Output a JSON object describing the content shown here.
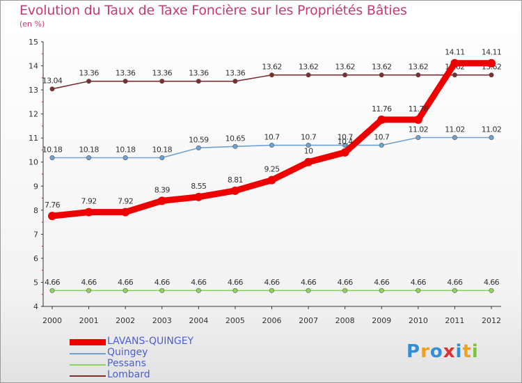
{
  "chart_data": {
    "type": "line",
    "title": "Evolution du Taux de Taxe Foncière sur les Propriétés Bâties",
    "ylabel": "(en %)",
    "xlabel": "",
    "categories": [
      "2000",
      "2001",
      "2002",
      "2003",
      "2004",
      "2005",
      "2006",
      "2007",
      "2008",
      "2009",
      "2010",
      "2011",
      "2012"
    ],
    "ylim": [
      4,
      15
    ],
    "yticks": [
      "4",
      "5",
      "6",
      "7",
      "8",
      "9",
      "10",
      "11",
      "12",
      "13",
      "14",
      "15"
    ],
    "grid": false,
    "legend": "bottom-left",
    "series": [
      {
        "name": "Lombard",
        "color": "#7a2e2e",
        "values": [
          13.04,
          13.36,
          13.36,
          13.36,
          13.36,
          13.36,
          13.62,
          13.62,
          13.62,
          13.62,
          13.62,
          13.62,
          13.62
        ],
        "labels": [
          "13.04",
          "13.36",
          "13.36",
          "13.36",
          "13.36",
          "13.36",
          "13.62",
          "13.62",
          "13.62",
          "13.62",
          "13.62",
          "13.62",
          "13.62"
        ]
      },
      {
        "name": "Quingey",
        "color": "#6fa1d2",
        "values": [
          10.18,
          10.18,
          10.18,
          10.18,
          10.59,
          10.65,
          10.7,
          10.7,
          10.7,
          10.7,
          11.02,
          11.02,
          11.02
        ],
        "labels": [
          "10.18",
          "10.18",
          "10.18",
          "10.18",
          "10.59",
          "10.65",
          "10.7",
          "10.7",
          "10.7",
          "10.7",
          "11.02",
          "11.02",
          "11.02"
        ]
      },
      {
        "name": "Pessans",
        "color": "#8ed35f",
        "values": [
          4.66,
          4.66,
          4.66,
          4.66,
          4.66,
          4.66,
          4.66,
          4.66,
          4.66,
          4.66,
          4.66,
          4.66,
          4.66
        ],
        "labels": [
          "4.66",
          "4.66",
          "4.66",
          "4.66",
          "4.66",
          "4.66",
          "4.66",
          "4.66",
          "4.66",
          "4.66",
          "4.66",
          "4.66",
          "4.66"
        ]
      },
      {
        "name": "LAVANS-QUINGEY",
        "color": "#ee0000",
        "values": [
          7.76,
          7.92,
          7.92,
          8.39,
          8.55,
          8.81,
          9.25,
          10,
          10.4,
          11.76,
          11.76,
          14.11,
          14.11
        ],
        "labels": [
          "7.76",
          "7.92",
          "7.92",
          "8.39",
          "8.55",
          "8.81",
          "9.25",
          "10",
          "10.4",
          "11.76",
          "11.76",
          "14.11",
          "14.11"
        ]
      }
    ]
  },
  "legend_items": [
    {
      "label": "LAVANS-QUINGEY",
      "color": "#ee0000"
    },
    {
      "label": "Quingey",
      "color": "#6fa1d2"
    },
    {
      "label": "Pessans",
      "color": "#8ed35f"
    },
    {
      "label": "Lombard",
      "color": "#7a2e2e"
    }
  ],
  "logo": {
    "text": "Proxiti"
  }
}
